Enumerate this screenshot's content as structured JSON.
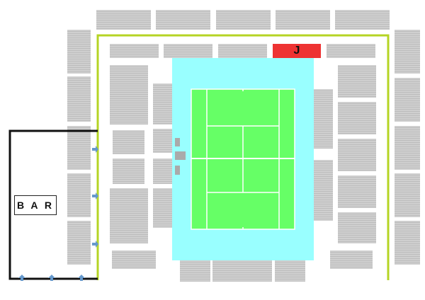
{
  "map": {
    "bar_label": "B A R",
    "highlight_section_label": "J",
    "colors": {
      "court": "#66ff66",
      "court_surround": "#99ffff",
      "perimeter_line": "#b5d424",
      "highlight_section": "#ee3333",
      "seating": "#cccccc",
      "bar_outline": "#111111",
      "entry_arrow": "#6699cc"
    }
  }
}
